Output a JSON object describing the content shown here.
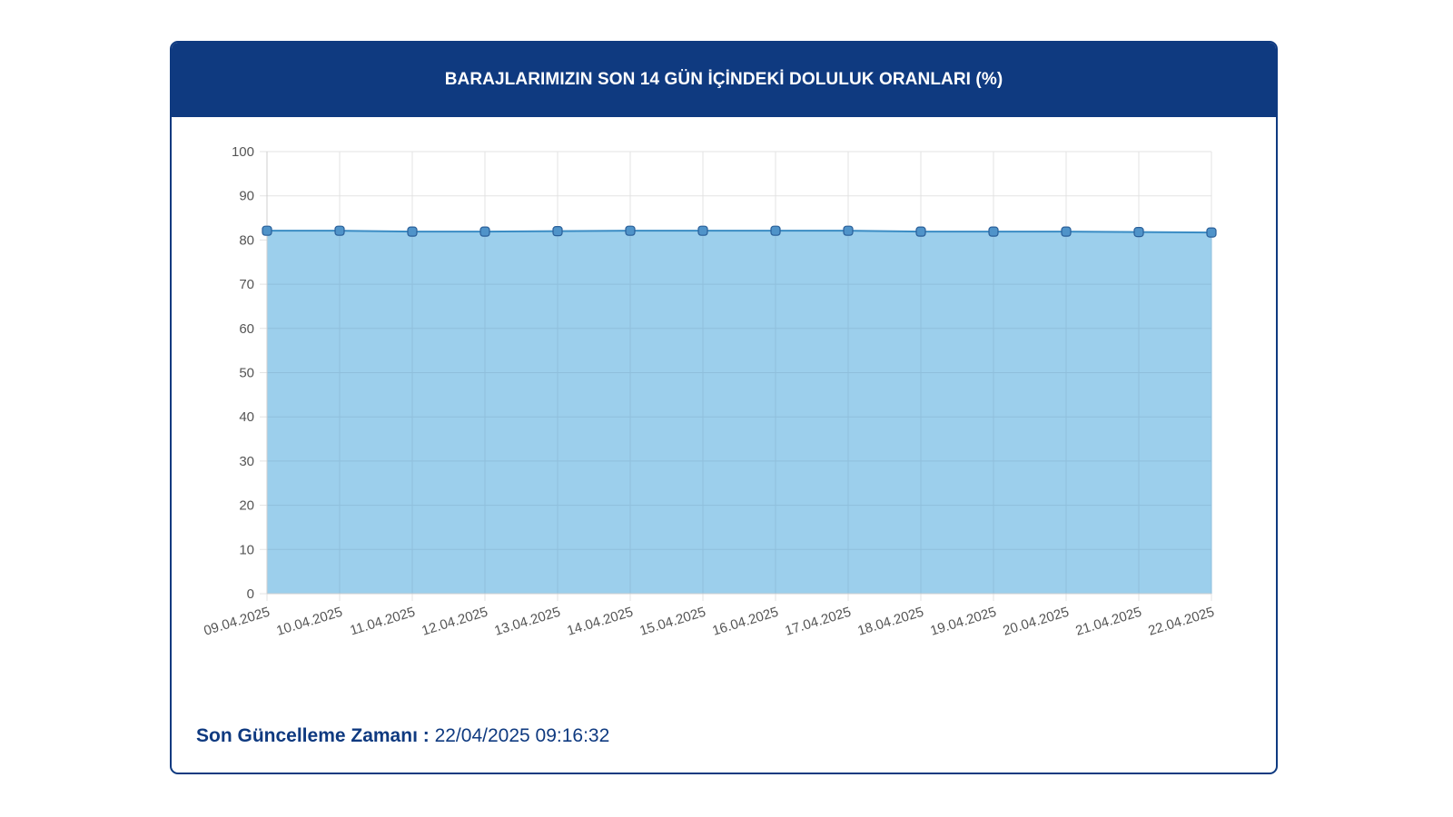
{
  "card": {
    "title": "BARAJLARIMIZIN SON 14 GÜN İÇİNDEKİ DOLULUK ORANLARI (%)",
    "footer_label": "Son Güncelleme Zamanı :",
    "footer_value": "22/04/2025 09:16:32"
  },
  "colors": {
    "header": "#0f3a80",
    "area_fill": "#9ccfec",
    "line": "#3a8cc4",
    "marker": "#4f93c9",
    "grid": "#e3e3e3"
  },
  "chart_data": {
    "type": "area",
    "title": "BARAJLARIMIZIN SON 14 GÜN İÇİNDEKİ DOLULUK ORANLARI (%)",
    "xlabel": "",
    "ylabel": "",
    "ylim": [
      0,
      100
    ],
    "yticks": [
      0,
      10,
      20,
      30,
      40,
      50,
      60,
      70,
      80,
      90,
      100
    ],
    "grid": true,
    "legend": "none",
    "x": [
      "09.04.2025",
      "10.04.2025",
      "11.04.2025",
      "12.04.2025",
      "13.04.2025",
      "14.04.2025",
      "15.04.2025",
      "16.04.2025",
      "17.04.2025",
      "18.04.2025",
      "19.04.2025",
      "20.04.2025",
      "21.04.2025",
      "22.04.2025"
    ],
    "series": [
      {
        "values": [
          82.1,
          82.1,
          81.9,
          81.9,
          82.0,
          82.1,
          82.1,
          82.1,
          82.1,
          81.9,
          81.9,
          81.9,
          81.8,
          81.7
        ]
      }
    ]
  }
}
